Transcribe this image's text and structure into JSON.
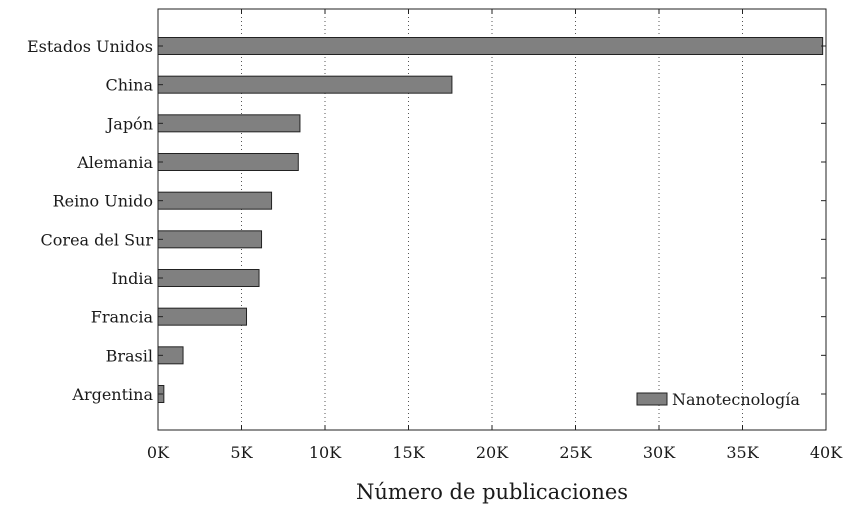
{
  "chart_data": {
    "type": "bar",
    "orientation": "horizontal",
    "categories": [
      "Estados Unidos",
      "China",
      "Japón",
      "Alemania",
      "Reino Unido",
      "Corea del Sur",
      "India",
      "Francia",
      "Brasil",
      "Argentina"
    ],
    "series": [
      {
        "name": "Nanotecnología",
        "values": [
          39800,
          17600,
          8500,
          8400,
          6800,
          6200,
          6050,
          5300,
          1500,
          350
        ],
        "color": "#808080"
      }
    ],
    "xlabel": "Número de publicaciones",
    "ylabel": "",
    "xlim": [
      0,
      40000
    ],
    "xticks": [
      0,
      5000,
      10000,
      15000,
      20000,
      25000,
      30000,
      35000,
      40000
    ],
    "xtick_labels": [
      "0K",
      "5K",
      "10K",
      "15K",
      "20K",
      "25K",
      "30K",
      "35K",
      "40K"
    ],
    "grid": "vertical dotted",
    "legend_position": "bottom-right"
  }
}
